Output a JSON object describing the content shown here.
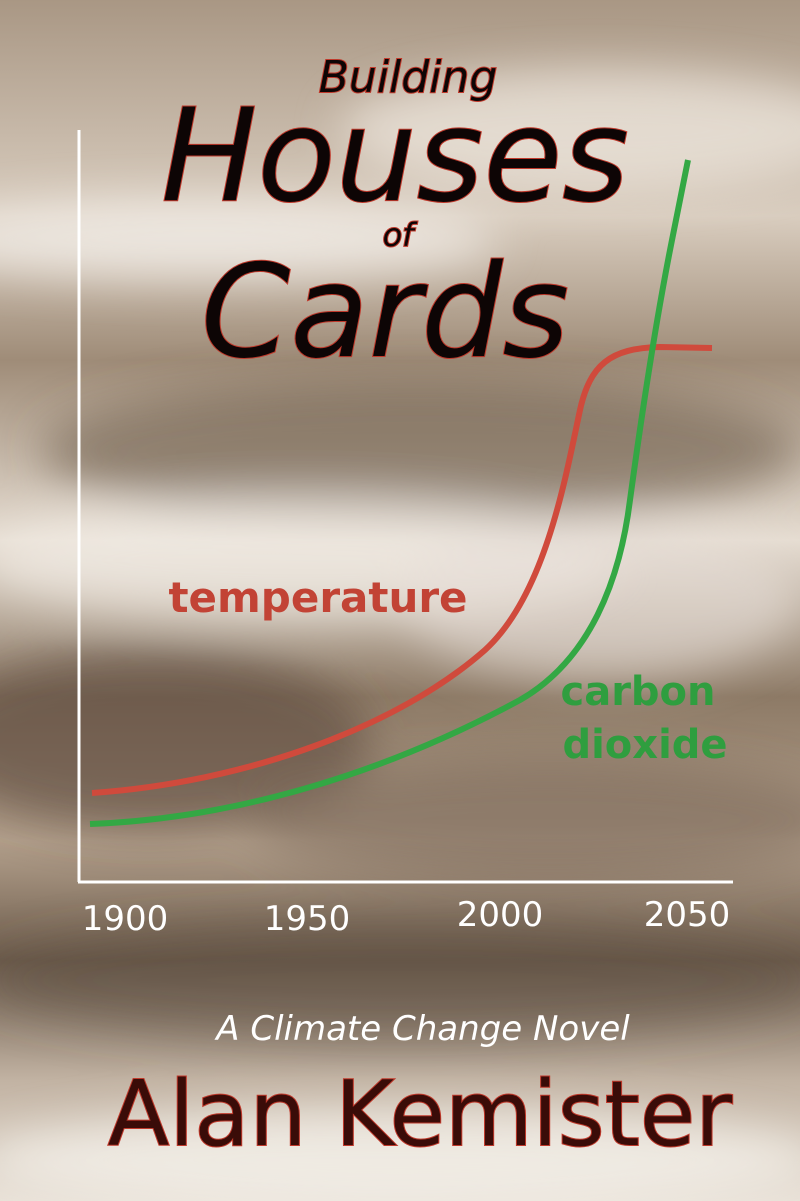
{
  "cover": {
    "title": {
      "top": "Building",
      "main": "Houses",
      "middle": "of",
      "bottom": "Cards"
    },
    "axis_labels": [
      "1900",
      "1950",
      "2000",
      "2050"
    ],
    "curve_labels": {
      "temperature": "temperature",
      "carbon_dioxide": [
        "carbon",
        "dioxide"
      ]
    },
    "subtitle": "A Climate Change Novel",
    "author": "Alan Kemister"
  }
}
